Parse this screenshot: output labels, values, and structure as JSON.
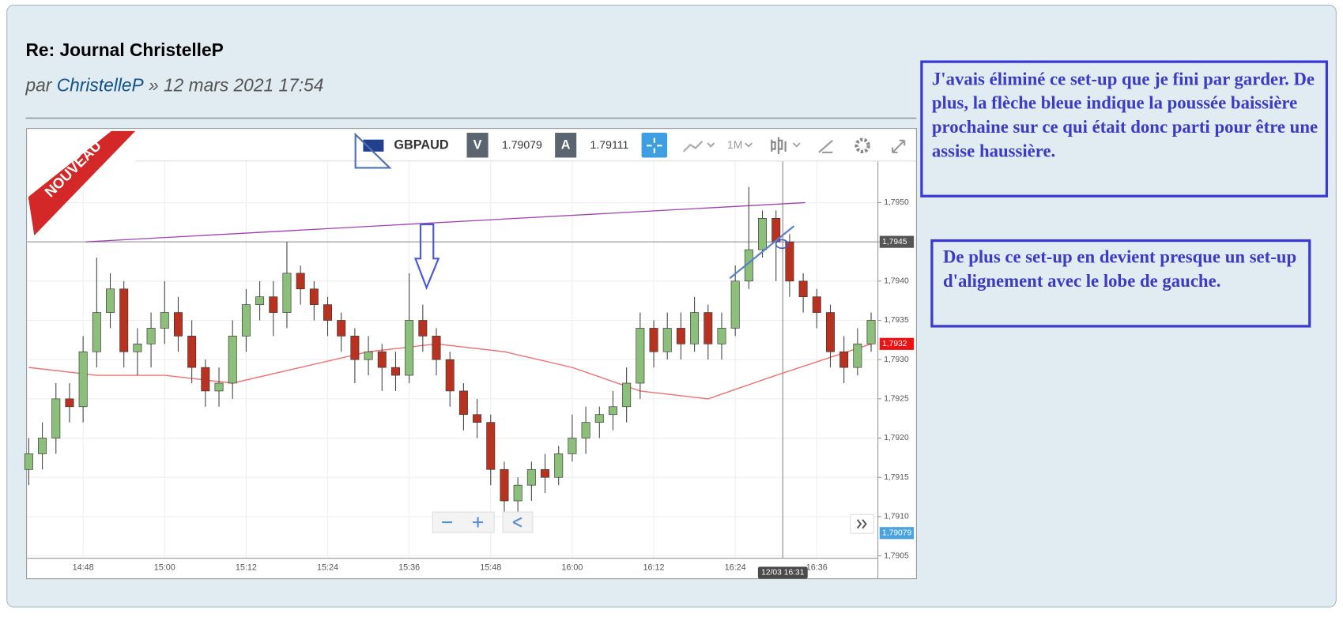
{
  "post": {
    "title": "Re: Journal ChristelleP",
    "byline": {
      "prefix": "par",
      "author": "ChristelleP",
      "date": "» 12 mars 2021 17:54"
    }
  },
  "badge": "NOUVEAU",
  "toolbar": {
    "symbol": "GBPAUD",
    "bid_label": "V",
    "bid": "1.79079",
    "ask_label": "A",
    "ask": "1.79111",
    "period": "1M"
  },
  "notes": [
    "J'avais éliminé ce set-up que je fini par garder. De plus, la flèche bleue indique la poussée baissière prochaine sur ce qui était donc parti pour être une assise haussière.",
    "De plus ce set-up en devient presque un  set-up d'alignement avec le lobe de  gauche."
  ],
  "chart_data": {
    "type": "candlestick",
    "xlim": [
      879.8,
      1005
    ],
    "ylim": [
      1.79047,
      1.79553
    ],
    "xticks": [
      {
        "value": 888,
        "label": "14:48"
      },
      {
        "value": 900,
        "label": "15:00"
      },
      {
        "value": 912,
        "label": "15:12"
      },
      {
        "value": 924,
        "label": "15:24"
      },
      {
        "value": 936,
        "label": "15:36"
      },
      {
        "value": 948,
        "label": "15:48"
      },
      {
        "value": 960,
        "label": "16:00"
      },
      {
        "value": 972,
        "label": "16:12"
      },
      {
        "value": 984,
        "label": "16:24"
      },
      {
        "value": 996,
        "label": "16:36"
      }
    ],
    "yticks": [
      {
        "value": 1.7905,
        "label": "1,7905"
      },
      {
        "value": 1.791,
        "label": "1,7910"
      },
      {
        "value": 1.7915,
        "label": "1,7915"
      },
      {
        "value": 1.792,
        "label": "1,7920"
      },
      {
        "value": 1.7925,
        "label": "1,7925"
      },
      {
        "value": 1.793,
        "label": "1,7930"
      },
      {
        "value": 1.7935,
        "label": "1,7935"
      },
      {
        "value": 1.794,
        "label": "1,7940"
      },
      {
        "value": 1.7945,
        "label": "1,7945"
      },
      {
        "value": 1.795,
        "label": "1,7950"
      }
    ],
    "grid": true,
    "up_color": "#8cbf7a",
    "down_color": "#b8321f",
    "x": [
      880,
      882,
      884,
      886,
      888,
      890,
      892,
      894,
      896,
      898,
      900,
      902,
      904,
      906,
      908,
      910,
      912,
      914,
      916,
      918,
      920,
      922,
      924,
      926,
      928,
      930,
      932,
      934,
      936,
      938,
      940,
      942,
      944,
      946,
      948,
      950,
      952,
      954,
      956,
      958,
      960,
      962,
      964,
      966,
      968,
      970,
      972,
      974,
      976,
      978,
      980,
      982,
      984,
      986,
      988,
      990,
      992,
      994,
      996,
      998,
      1000,
      1002,
      1004
    ],
    "open": [
      1.7916,
      1.7918,
      1.792,
      1.7925,
      1.7924,
      1.7931,
      1.7936,
      1.7939,
      1.7931,
      1.7932,
      1.7934,
      1.7936,
      1.7933,
      1.7929,
      1.7926,
      1.7927,
      1.7933,
      1.7937,
      1.7938,
      1.7936,
      1.7941,
      1.7939,
      1.7937,
      1.7935,
      1.7933,
      1.793,
      1.7931,
      1.7929,
      1.7928,
      1.7935,
      1.7933,
      1.793,
      1.7926,
      1.7923,
      1.7922,
      1.7916,
      1.7912,
      1.7914,
      1.7916,
      1.7915,
      1.7918,
      1.792,
      1.7922,
      1.7923,
      1.7924,
      1.7927,
      1.7934,
      1.7931,
      1.7934,
      1.7932,
      1.7936,
      1.7932,
      1.7934,
      1.794,
      1.7944,
      1.7948,
      1.7945,
      1.794,
      1.7938,
      1.7936,
      1.7931,
      1.7929,
      1.7932
    ],
    "high": [
      1.792,
      1.7922,
      1.7927,
      1.7927,
      1.7933,
      1.7943,
      1.7941,
      1.794,
      1.7934,
      1.7936,
      1.794,
      1.7938,
      1.7935,
      1.793,
      1.7929,
      1.7935,
      1.7939,
      1.794,
      1.794,
      1.7945,
      1.7942,
      1.794,
      1.7938,
      1.7936,
      1.7934,
      1.7933,
      1.7932,
      1.7931,
      1.7941,
      1.7937,
      1.7934,
      1.7931,
      1.7927,
      1.7925,
      1.7923,
      1.7917,
      1.7915,
      1.7917,
      1.7918,
      1.7919,
      1.7923,
      1.7924,
      1.7924,
      1.7926,
      1.7929,
      1.7936,
      1.7935,
      1.7936,
      1.7936,
      1.7938,
      1.7937,
      1.7936,
      1.7942,
      1.7952,
      1.7949,
      1.7949,
      1.7946,
      1.7941,
      1.7939,
      1.7937,
      1.7933,
      1.7934,
      1.7936
    ],
    "low": [
      1.7914,
      1.7916,
      1.7918,
      1.7922,
      1.7922,
      1.7929,
      1.7934,
      1.7929,
      1.7928,
      1.7929,
      1.7932,
      1.7931,
      1.7927,
      1.7924,
      1.7924,
      1.7925,
      1.7931,
      1.7935,
      1.7933,
      1.7934,
      1.7937,
      1.7935,
      1.7933,
      1.7931,
      1.7927,
      1.7928,
      1.7926,
      1.7926,
      1.7927,
      1.7931,
      1.7928,
      1.7924,
      1.7921,
      1.792,
      1.7914,
      1.7909,
      1.791,
      1.7912,
      1.7913,
      1.7914,
      1.7917,
      1.7918,
      1.792,
      1.7921,
      1.7922,
      1.7925,
      1.7929,
      1.793,
      1.793,
      1.7931,
      1.793,
      1.793,
      1.7933,
      1.7939,
      1.7943,
      1.794,
      1.7938,
      1.7936,
      1.7934,
      1.7929,
      1.7927,
      1.7928,
      1.7931
    ],
    "close": [
      1.7918,
      1.792,
      1.7925,
      1.7924,
      1.7931,
      1.7936,
      1.7939,
      1.7931,
      1.7932,
      1.7934,
      1.7936,
      1.7933,
      1.7929,
      1.7926,
      1.7927,
      1.7933,
      1.7937,
      1.7938,
      1.7936,
      1.7941,
      1.7939,
      1.7937,
      1.7935,
      1.7933,
      1.793,
      1.7931,
      1.7929,
      1.7928,
      1.7935,
      1.7933,
      1.793,
      1.7926,
      1.7923,
      1.7922,
      1.7916,
      1.7912,
      1.7914,
      1.7916,
      1.7915,
      1.7918,
      1.792,
      1.7922,
      1.7923,
      1.7924,
      1.7927,
      1.7934,
      1.7931,
      1.7934,
      1.7932,
      1.7936,
      1.7932,
      1.7934,
      1.794,
      1.7944,
      1.7948,
      1.7945,
      1.794,
      1.7938,
      1.7936,
      1.7931,
      1.7929,
      1.7932,
      1.7935
    ],
    "moving_average": {
      "color": "#f07070",
      "x": [
        880,
        890,
        900,
        910,
        920,
        930,
        940,
        950,
        960,
        970,
        980,
        990,
        1004
      ],
      "values": [
        1.7929,
        1.7928,
        1.7928,
        1.7927,
        1.7929,
        1.7931,
        1.7932,
        1.7931,
        1.7929,
        1.7926,
        1.7925,
        1.7928,
        1.7932
      ]
    },
    "trendline": {
      "color": "#a040b0",
      "x": [
        888.4,
        994.3
      ],
      "values": [
        1.7945,
        1.795
      ]
    },
    "price_tags": [
      {
        "value": 1.7945,
        "label": "1,7945",
        "color": "#555555"
      },
      {
        "value": 1.7932,
        "label": "1,7932",
        "color": "#ee1111"
      },
      {
        "value": 1.79079,
        "label": "1,79079",
        "color": "#4aa3df"
      }
    ],
    "crosshair": {
      "value": 991,
      "label": "12/03 16:31"
    }
  }
}
